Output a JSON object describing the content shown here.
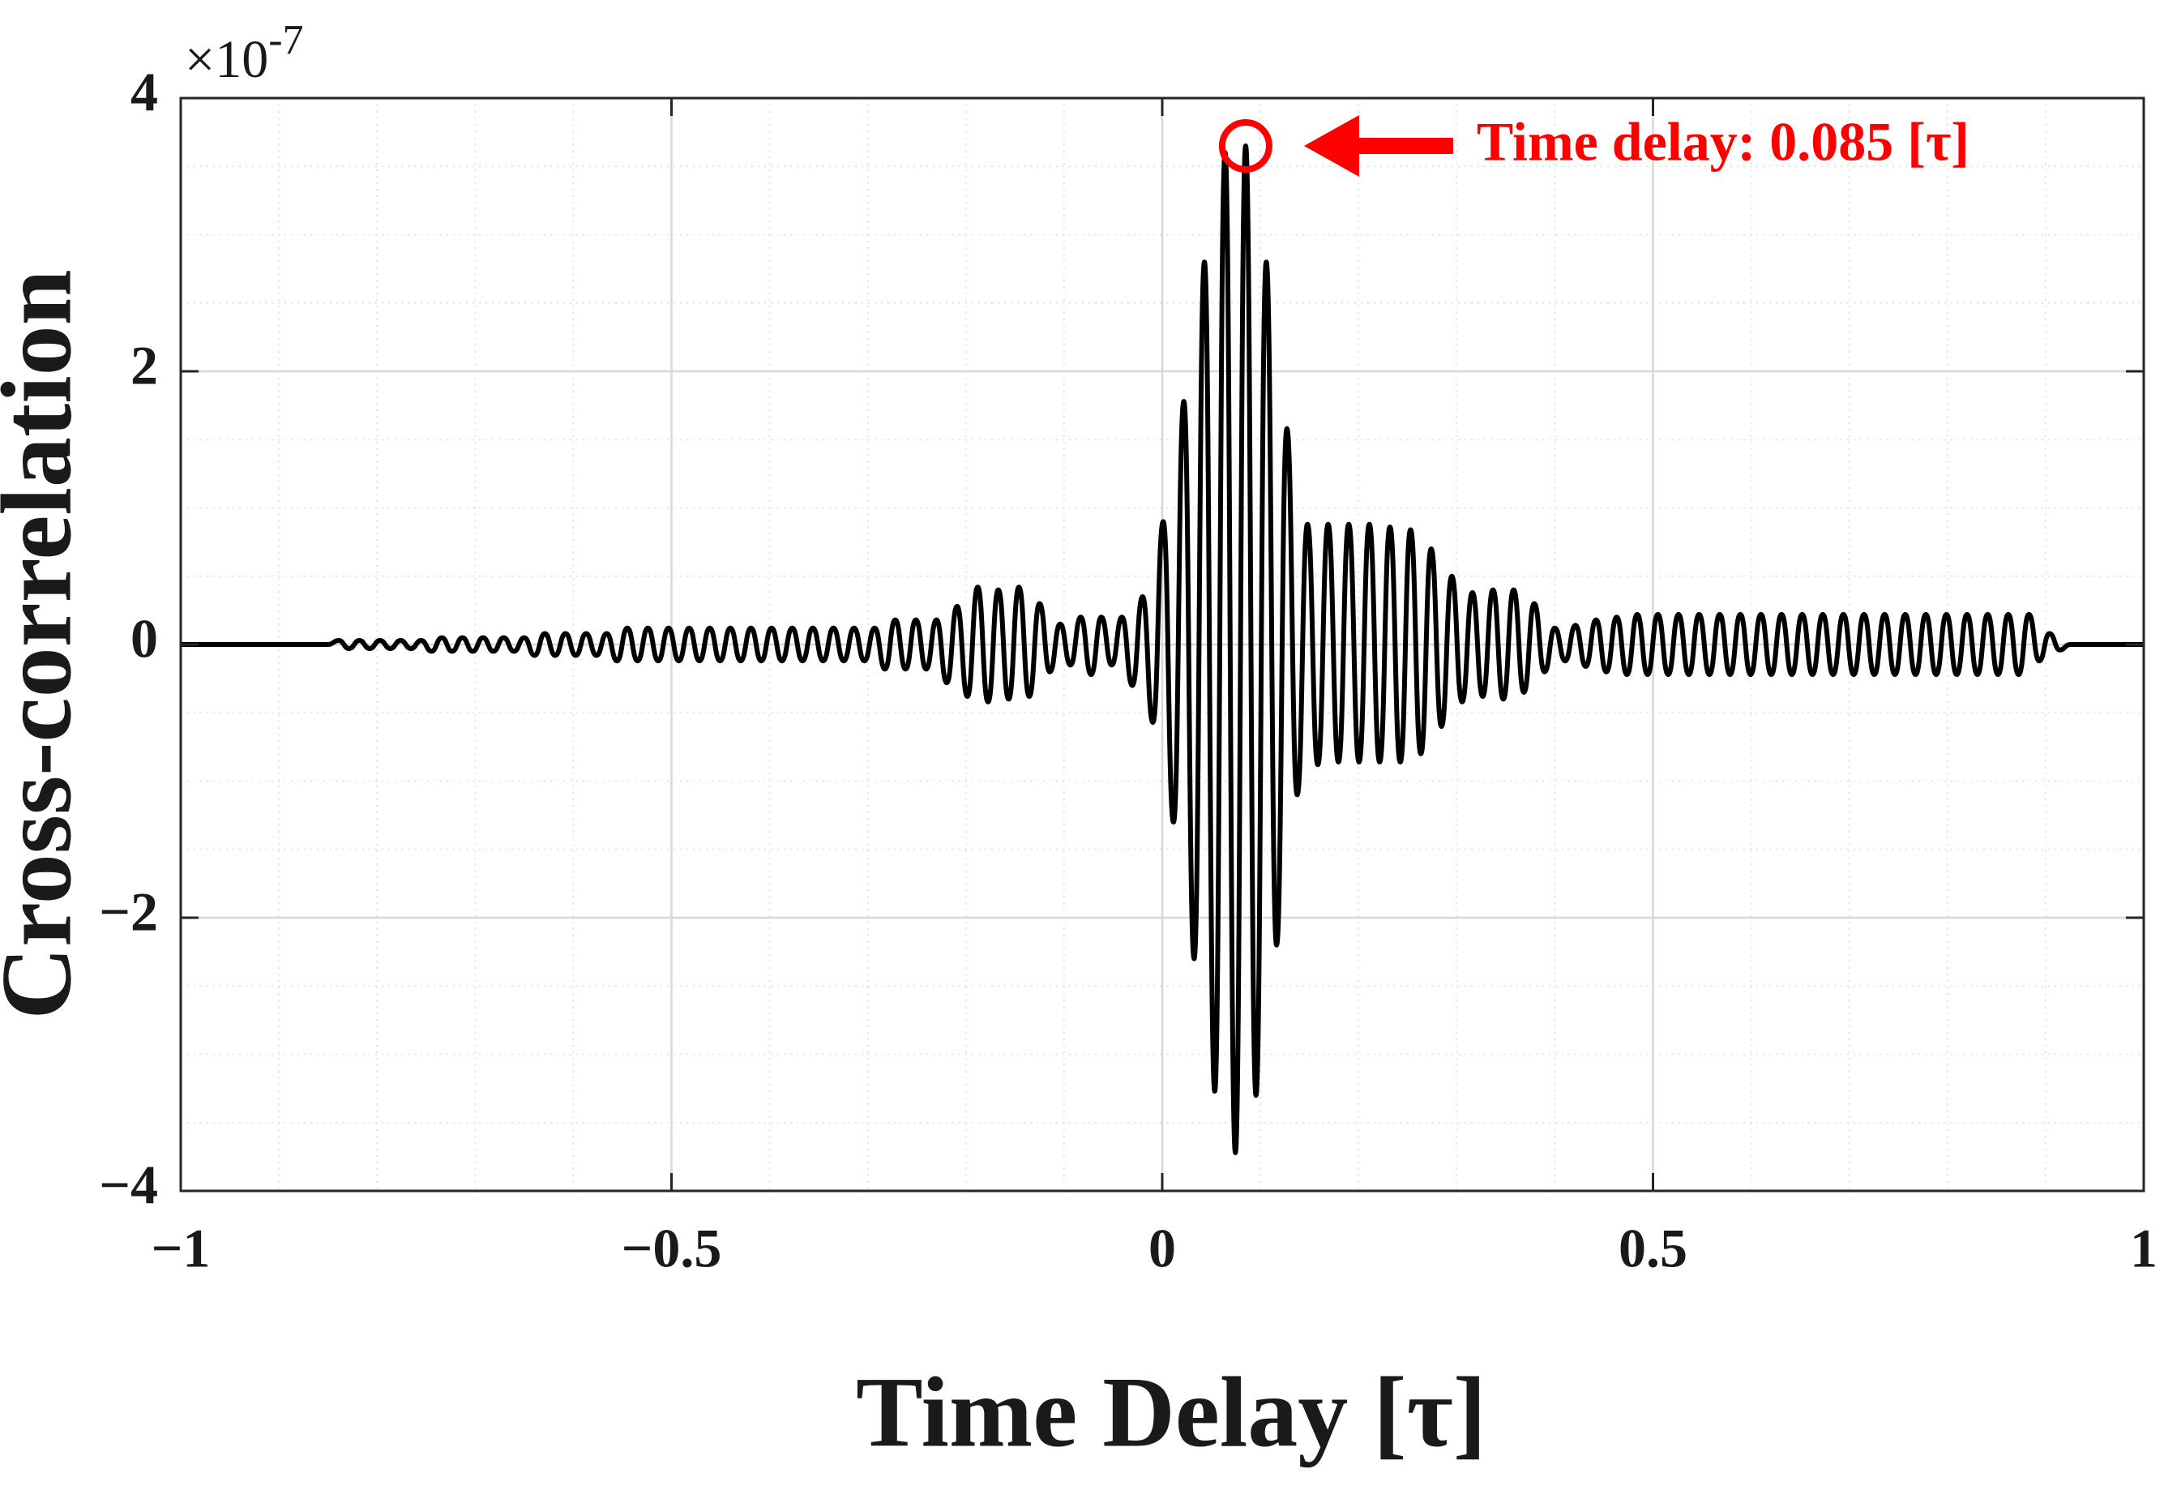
{
  "chart_data": {
    "type": "line",
    "xlabel": "Time Delay [τ]",
    "ylabel": "Cross-correlation",
    "y_multiplier": "×10",
    "y_exponent": "-7",
    "color": "#000000",
    "xlim": [
      -1,
      1
    ],
    "ylim": [
      -4,
      4
    ],
    "xticks": [
      {
        "value": -1,
        "label": "−1"
      },
      {
        "value": -0.5,
        "label": "−0.5"
      },
      0,
      0.5,
      1
    ],
    "yticks": [
      {
        "value": -4,
        "label": "−4"
      },
      {
        "value": -2,
        "label": "−2"
      },
      0,
      2,
      4
    ],
    "grid": true,
    "xminor_step": 0.1,
    "yminor_step": 0.5,
    "annotation": {
      "text": "Time delay: 0.085 [τ]",
      "x": 0.085,
      "y": 3.65,
      "color": "#ff0000"
    },
    "x": [
      -1,
      -0.85,
      -0.839,
      -0.8285,
      -0.818,
      -0.8075,
      -0.797,
      -0.7865,
      -0.776,
      -0.7655,
      -0.755,
      -0.7445,
      -0.734,
      -0.7235,
      -0.713,
      -0.7025,
      -0.692,
      -0.6815,
      -0.671,
      -0.6605,
      -0.65,
      -0.6395,
      -0.629,
      -0.6185,
      -0.608,
      -0.5975,
      -0.587,
      -0.5765,
      -0.566,
      -0.5555,
      -0.545,
      -0.5345,
      -0.524,
      -0.5135,
      -0.503,
      -0.4925,
      -0.482,
      -0.4715,
      -0.461,
      -0.4505,
      -0.44,
      -0.4295,
      -0.419,
      -0.4085,
      -0.398,
      -0.3875,
      -0.377,
      -0.3665,
      -0.356,
      -0.3455,
      -0.335,
      -0.3245,
      -0.314,
      -0.3035,
      -0.293,
      -0.2825,
      -0.272,
      -0.2615,
      -0.251,
      -0.2405,
      -0.23,
      -0.2195,
      -0.209,
      -0.1985,
      -0.188,
      -0.1775,
      -0.167,
      -0.1565,
      -0.146,
      -0.1355,
      -0.125,
      -0.1145,
      -0.104,
      -0.0935,
      -0.083,
      -0.0725,
      -0.062,
      -0.0515,
      -0.041,
      -0.0305,
      -0.02,
      -0.0095,
      0.001,
      0.0115,
      0.022,
      0.0325,
      0.043,
      0.0535,
      0.064,
      0.0745,
      0.085,
      0.0955,
      0.106,
      0.1165,
      0.127,
      0.1375,
      0.148,
      0.1585,
      0.169,
      0.1795,
      0.19,
      0.2005,
      0.211,
      0.2215,
      0.232,
      0.2425,
      0.253,
      0.2635,
      0.274,
      0.2845,
      0.295,
      0.3055,
      0.316,
      0.3265,
      0.337,
      0.3475,
      0.358,
      0.3685,
      0.379,
      0.3895,
      0.4,
      0.4105,
      0.421,
      0.4315,
      0.442,
      0.4525,
      0.463,
      0.4735,
      0.484,
      0.4945,
      0.505,
      0.5155,
      0.526,
      0.5365,
      0.547,
      0.5575,
      0.568,
      0.5785,
      0.589,
      0.5995,
      0.61,
      0.6205,
      0.631,
      0.6415,
      0.652,
      0.6625,
      0.673,
      0.6835,
      0.694,
      0.7045,
      0.715,
      0.7255,
      0.736,
      0.7465,
      0.757,
      0.7675,
      0.778,
      0.7885,
      0.799,
      0.8095,
      0.82,
      0.8305,
      0.841,
      0.8515,
      0.862,
      0.8725,
      0.883,
      0.8935,
      0.904,
      0.9145,
      0.925,
      1
    ],
    "values": [
      0,
      0,
      0.03,
      -0.03,
      0.03,
      -0.03,
      0.03,
      -0.03,
      0.03,
      -0.03,
      0.03,
      -0.05,
      0.05,
      -0.05,
      0.05,
      -0.05,
      0.05,
      -0.05,
      0.05,
      -0.05,
      0.05,
      -0.08,
      0.08,
      -0.08,
      0.08,
      -0.08,
      0.08,
      -0.08,
      0.08,
      -0.12,
      0.12,
      -0.12,
      0.12,
      -0.12,
      0.12,
      -0.12,
      0.12,
      -0.12,
      0.12,
      -0.12,
      0.12,
      -0.12,
      0.12,
      -0.12,
      0.12,
      -0.12,
      0.12,
      -0.12,
      0.12,
      -0.12,
      0.12,
      -0.12,
      0.12,
      -0.12,
      0.12,
      -0.18,
      0.18,
      -0.18,
      0.18,
      -0.18,
      0.18,
      -0.28,
      0.28,
      -0.38,
      0.42,
      -0.42,
      0.4,
      -0.4,
      0.42,
      -0.38,
      0.3,
      -0.2,
      0.15,
      -0.15,
      0.2,
      -0.22,
      0.2,
      -0.15,
      0.2,
      -0.3,
      0.35,
      -0.57,
      0.9,
      -1.3,
      1.78,
      -2.3,
      2.8,
      -3.27,
      3.6,
      -3.72,
      3.65,
      -3.3,
      2.8,
      -2.2,
      1.58,
      -1.1,
      0.88,
      -0.88,
      0.88,
      -0.86,
      0.88,
      -0.86,
      0.88,
      -0.86,
      0.86,
      -0.86,
      0.84,
      -0.8,
      0.7,
      -0.6,
      0.5,
      -0.42,
      0.38,
      -0.38,
      0.4,
      -0.4,
      0.4,
      -0.35,
      0.3,
      -0.2,
      0.12,
      -0.12,
      0.14,
      -0.16,
      0.18,
      -0.2,
      0.2,
      -0.22,
      0.22,
      -0.22,
      0.22,
      -0.22,
      0.22,
      -0.22,
      0.22,
      -0.22,
      0.22,
      -0.22,
      0.22,
      -0.22,
      0.22,
      -0.22,
      0.22,
      -0.22,
      0.22,
      -0.22,
      0.22,
      -0.22,
      0.22,
      -0.22,
      0.22,
      -0.22,
      0.22,
      -0.22,
      0.22,
      -0.22,
      0.22,
      -0.22,
      0.22,
      -0.22,
      0.22,
      -0.22,
      0.22,
      -0.22,
      0.22,
      -0.22,
      0.22,
      -0.12,
      0.08,
      -0.04,
      0,
      0
    ]
  }
}
